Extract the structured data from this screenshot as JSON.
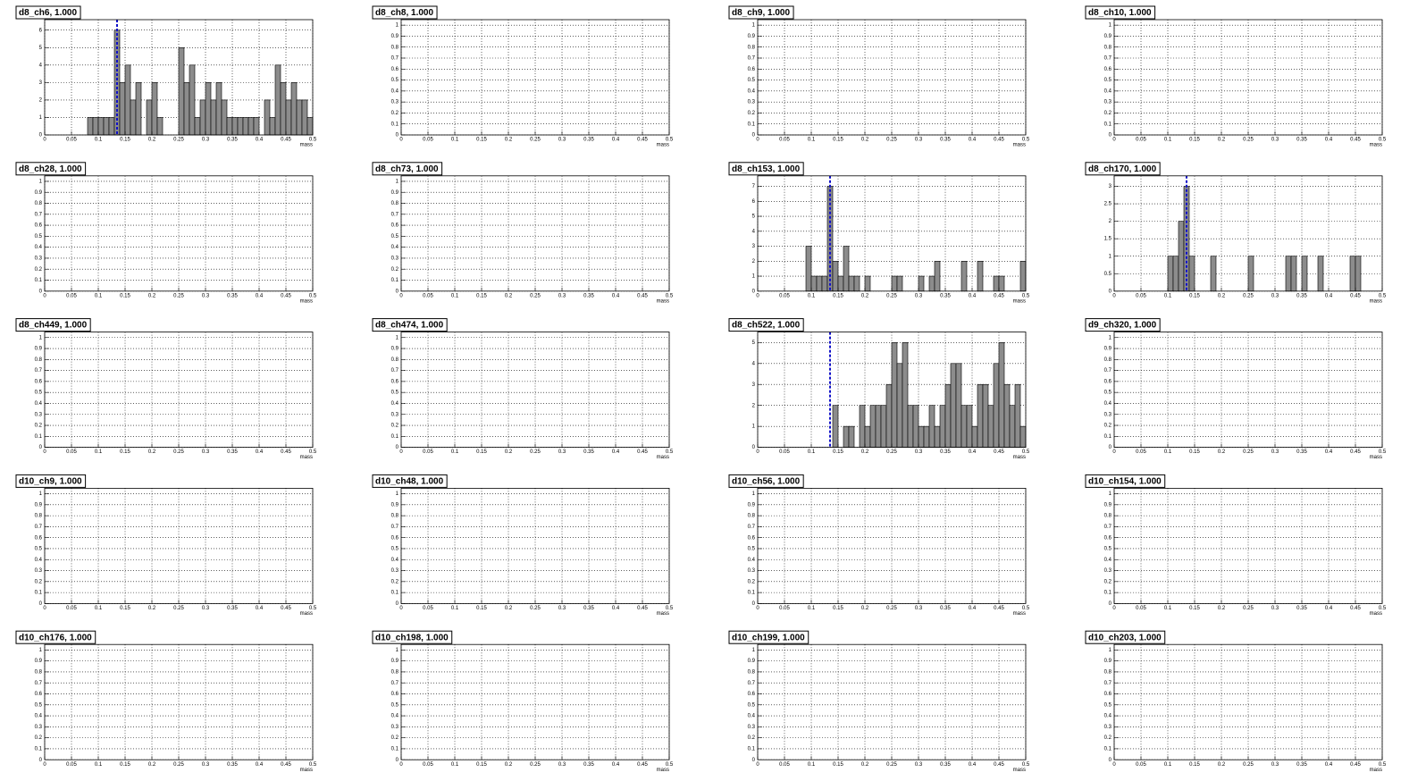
{
  "chart_data": [
    {
      "type": "histogram",
      "title": "d8_ch6, 1.000",
      "xlabel": "mass",
      "xlim": [
        0,
        0.5
      ],
      "xticks": [
        0,
        0.05,
        0.1,
        0.15,
        0.2,
        0.25,
        0.3,
        0.35,
        0.4,
        0.45,
        0.5
      ],
      "ylim": [
        0,
        6.6
      ],
      "yticks": [
        0,
        1,
        2,
        3,
        4,
        5,
        6
      ],
      "grid": true,
      "color": "#8c8c8c",
      "reference_line": 0.135,
      "reference_color": "#1010c8",
      "bins": [
        0,
        0.01,
        0.02,
        0.03,
        0.04,
        0.05,
        0.06,
        0.07,
        0.08,
        0.09,
        0.1,
        0.11,
        0.12,
        0.13,
        0.14,
        0.15,
        0.16,
        0.17,
        0.18,
        0.19,
        0.2,
        0.21,
        0.22,
        0.23,
        0.24,
        0.25,
        0.26,
        0.27,
        0.28,
        0.29,
        0.3,
        0.31,
        0.32,
        0.33,
        0.34,
        0.35,
        0.36,
        0.37,
        0.38,
        0.39,
        0.4,
        0.41,
        0.42,
        0.43,
        0.44,
        0.45,
        0.46,
        0.47,
        0.48,
        0.49,
        0.5
      ],
      "counts": [
        0,
        0,
        0,
        0,
        0,
        0,
        0,
        0,
        1,
        1,
        1,
        1,
        1,
        6,
        3,
        4,
        2,
        3,
        0,
        2,
        3,
        1,
        0,
        0,
        0,
        5,
        3,
        4,
        1,
        2,
        3,
        2,
        3,
        2,
        1,
        1,
        1,
        1,
        1,
        1,
        0,
        2,
        1,
        4,
        3,
        2,
        3,
        2,
        2,
        1
      ]
    },
    {
      "type": "histogram",
      "title": "d8_ch8, 1.000",
      "xlabel": "mass",
      "xlim": [
        0,
        0.5
      ],
      "xticks": [
        0,
        0.05,
        0.1,
        0.15,
        0.2,
        0.25,
        0.3,
        0.35,
        0.4,
        0.45,
        0.5
      ],
      "ylim": [
        0,
        1.05
      ],
      "yticks": [
        0,
        0.1,
        0.2,
        0.3,
        0.4,
        0.5,
        0.6,
        0.7,
        0.8,
        0.9,
        1
      ],
      "grid": true
    },
    {
      "type": "histogram",
      "title": "d8_ch9, 1.000",
      "xlabel": "mass",
      "xlim": [
        0,
        0.5
      ],
      "xticks": [
        0,
        0.05,
        0.1,
        0.15,
        0.2,
        0.25,
        0.3,
        0.35,
        0.4,
        0.45,
        0.5
      ],
      "ylim": [
        0,
        1.05
      ],
      "yticks": [
        0,
        0.1,
        0.2,
        0.3,
        0.4,
        0.5,
        0.6,
        0.7,
        0.8,
        0.9,
        1
      ],
      "grid": true
    },
    {
      "type": "histogram",
      "title": "d8_ch10, 1.000",
      "xlabel": "mass",
      "xlim": [
        0,
        0.5
      ],
      "xticks": [
        0,
        0.05,
        0.1,
        0.15,
        0.2,
        0.25,
        0.3,
        0.35,
        0.4,
        0.45,
        0.5
      ],
      "ylim": [
        0,
        1.05
      ],
      "yticks": [
        0,
        0.1,
        0.2,
        0.3,
        0.4,
        0.5,
        0.6,
        0.7,
        0.8,
        0.9,
        1
      ],
      "grid": true
    },
    {
      "type": "histogram",
      "title": "d8_ch28, 1.000",
      "xlabel": "mass",
      "xlim": [
        0,
        0.5
      ],
      "xticks": [
        0,
        0.05,
        0.1,
        0.15,
        0.2,
        0.25,
        0.3,
        0.35,
        0.4,
        0.45,
        0.5
      ],
      "ylim": [
        0,
        1.05
      ],
      "yticks": [
        0,
        0.1,
        0.2,
        0.3,
        0.4,
        0.5,
        0.6,
        0.7,
        0.8,
        0.9,
        1
      ],
      "grid": true
    },
    {
      "type": "histogram",
      "title": "d8_ch73, 1.000",
      "xlabel": "mass",
      "xlim": [
        0,
        0.5
      ],
      "xticks": [
        0,
        0.05,
        0.1,
        0.15,
        0.2,
        0.25,
        0.3,
        0.35,
        0.4,
        0.45,
        0.5
      ],
      "ylim": [
        0,
        1.05
      ],
      "yticks": [
        0,
        0.1,
        0.2,
        0.3,
        0.4,
        0.5,
        0.6,
        0.7,
        0.8,
        0.9,
        1
      ],
      "grid": true
    },
    {
      "type": "histogram",
      "title": "d8_ch153, 1.000",
      "xlabel": "mass",
      "xlim": [
        0,
        0.5
      ],
      "xticks": [
        0,
        0.05,
        0.1,
        0.15,
        0.2,
        0.25,
        0.3,
        0.35,
        0.4,
        0.45,
        0.5
      ],
      "ylim": [
        0,
        7.7
      ],
      "yticks": [
        0,
        1,
        2,
        3,
        4,
        5,
        6,
        7
      ],
      "grid": true,
      "color": "#8c8c8c",
      "reference_line": 0.135,
      "reference_color": "#1010c8",
      "bins": [
        0,
        0.01,
        0.02,
        0.03,
        0.04,
        0.05,
        0.06,
        0.07,
        0.08,
        0.09,
        0.1,
        0.11,
        0.12,
        0.13,
        0.14,
        0.15,
        0.16,
        0.17,
        0.18,
        0.19,
        0.2,
        0.21,
        0.22,
        0.23,
        0.24,
        0.25,
        0.26,
        0.27,
        0.28,
        0.29,
        0.3,
        0.31,
        0.32,
        0.33,
        0.34,
        0.35,
        0.36,
        0.37,
        0.38,
        0.39,
        0.4,
        0.41,
        0.42,
        0.43,
        0.44,
        0.45,
        0.46,
        0.47,
        0.48,
        0.49,
        0.5
      ],
      "counts": [
        0,
        0,
        0,
        0,
        0,
        0,
        0,
        0,
        0,
        3,
        1,
        1,
        1,
        7,
        2,
        1,
        3,
        1,
        1,
        0,
        1,
        0,
        0,
        0,
        0,
        1,
        1,
        0,
        0,
        0,
        1,
        0,
        1,
        2,
        0,
        0,
        0,
        0,
        2,
        0,
        0,
        2,
        0,
        0,
        1,
        1,
        0,
        0,
        0,
        2
      ]
    },
    {
      "type": "histogram",
      "title": "d8_ch170, 1.000",
      "xlabel": "mass",
      "xlim": [
        0,
        0.5
      ],
      "xticks": [
        0,
        0.05,
        0.1,
        0.15,
        0.2,
        0.25,
        0.3,
        0.35,
        0.4,
        0.45,
        0.5
      ],
      "ylim": [
        0,
        3.3
      ],
      "yticks": [
        0,
        0.5,
        1,
        1.5,
        2,
        2.5,
        3
      ],
      "grid": true,
      "color": "#8c8c8c",
      "reference_line": 0.135,
      "reference_color": "#1010c8",
      "bins": [
        0,
        0.01,
        0.02,
        0.03,
        0.04,
        0.05,
        0.06,
        0.07,
        0.08,
        0.09,
        0.1,
        0.11,
        0.12,
        0.13,
        0.14,
        0.15,
        0.16,
        0.17,
        0.18,
        0.19,
        0.2,
        0.21,
        0.22,
        0.23,
        0.24,
        0.25,
        0.26,
        0.27,
        0.28,
        0.29,
        0.3,
        0.31,
        0.32,
        0.33,
        0.34,
        0.35,
        0.36,
        0.37,
        0.38,
        0.39,
        0.4,
        0.41,
        0.42,
        0.43,
        0.44,
        0.45,
        0.46,
        0.47,
        0.48,
        0.49,
        0.5
      ],
      "counts": [
        0,
        0,
        0,
        0,
        0,
        0,
        0,
        0,
        0,
        0,
        1,
        1,
        2,
        3,
        1,
        0,
        0,
        0,
        1,
        0,
        0,
        0,
        0,
        0,
        0,
        1,
        0,
        0,
        0,
        0,
        0,
        0,
        1,
        1,
        0,
        1,
        0,
        0,
        1,
        0,
        0,
        0,
        0,
        0,
        1,
        1,
        0,
        0,
        0,
        0
      ]
    },
    {
      "type": "histogram",
      "title": "d8_ch449, 1.000",
      "xlabel": "mass",
      "xlim": [
        0,
        0.5
      ],
      "xticks": [
        0,
        0.05,
        0.1,
        0.15,
        0.2,
        0.25,
        0.3,
        0.35,
        0.4,
        0.45,
        0.5
      ],
      "ylim": [
        0,
        1.05
      ],
      "yticks": [
        0,
        0.1,
        0.2,
        0.3,
        0.4,
        0.5,
        0.6,
        0.7,
        0.8,
        0.9,
        1
      ],
      "grid": true
    },
    {
      "type": "histogram",
      "title": "d8_ch474, 1.000",
      "xlabel": "mass",
      "xlim": [
        0,
        0.5
      ],
      "xticks": [
        0,
        0.05,
        0.1,
        0.15,
        0.2,
        0.25,
        0.3,
        0.35,
        0.4,
        0.45,
        0.5
      ],
      "ylim": [
        0,
        1.05
      ],
      "yticks": [
        0,
        0.1,
        0.2,
        0.3,
        0.4,
        0.5,
        0.6,
        0.7,
        0.8,
        0.9,
        1
      ],
      "grid": true
    },
    {
      "type": "histogram",
      "title": "d8_ch522, 1.000",
      "xlabel": "mass",
      "xlim": [
        0,
        0.5
      ],
      "xticks": [
        0,
        0.05,
        0.1,
        0.15,
        0.2,
        0.25,
        0.3,
        0.35,
        0.4,
        0.45,
        0.5
      ],
      "ylim": [
        0,
        5.5
      ],
      "yticks": [
        0,
        1,
        2,
        3,
        4,
        5
      ],
      "grid": true,
      "color": "#8c8c8c",
      "reference_line": 0.135,
      "reference_color": "#1010c8",
      "bins": [
        0,
        0.01,
        0.02,
        0.03,
        0.04,
        0.05,
        0.06,
        0.07,
        0.08,
        0.09,
        0.1,
        0.11,
        0.12,
        0.13,
        0.14,
        0.15,
        0.16,
        0.17,
        0.18,
        0.19,
        0.2,
        0.21,
        0.22,
        0.23,
        0.24,
        0.25,
        0.26,
        0.27,
        0.28,
        0.29,
        0.3,
        0.31,
        0.32,
        0.33,
        0.34,
        0.35,
        0.36,
        0.37,
        0.38,
        0.39,
        0.4,
        0.41,
        0.42,
        0.43,
        0.44,
        0.45,
        0.46,
        0.47,
        0.48,
        0.49,
        0.5
      ],
      "counts": [
        0,
        0,
        0,
        0,
        0,
        0,
        0,
        0,
        0,
        0,
        0,
        0,
        0,
        0,
        2,
        0,
        1,
        1,
        0,
        2,
        1,
        2,
        2,
        2,
        3,
        5,
        4,
        5,
        2,
        2,
        1,
        1,
        2,
        1,
        2,
        3,
        4,
        4,
        2,
        2,
        1,
        3,
        3,
        2,
        4,
        5,
        3,
        2,
        3,
        1
      ]
    },
    {
      "type": "histogram",
      "title": "d9_ch320, 1.000",
      "xlabel": "mass",
      "xlim": [
        0,
        0.5
      ],
      "xticks": [
        0,
        0.05,
        0.1,
        0.15,
        0.2,
        0.25,
        0.3,
        0.35,
        0.4,
        0.45,
        0.5
      ],
      "ylim": [
        0,
        1.05
      ],
      "yticks": [
        0,
        0.1,
        0.2,
        0.3,
        0.4,
        0.5,
        0.6,
        0.7,
        0.8,
        0.9,
        1
      ],
      "grid": true
    },
    {
      "type": "histogram",
      "title": "d10_ch9, 1.000",
      "xlabel": "mass",
      "xlim": [
        0,
        0.5
      ],
      "xticks": [
        0,
        0.05,
        0.1,
        0.15,
        0.2,
        0.25,
        0.3,
        0.35,
        0.4,
        0.45,
        0.5
      ],
      "ylim": [
        0,
        1.05
      ],
      "yticks": [
        0,
        0.1,
        0.2,
        0.3,
        0.4,
        0.5,
        0.6,
        0.7,
        0.8,
        0.9,
        1
      ],
      "grid": true
    },
    {
      "type": "histogram",
      "title": "d10_ch48, 1.000",
      "xlabel": "mass",
      "xlim": [
        0,
        0.5
      ],
      "xticks": [
        0,
        0.05,
        0.1,
        0.15,
        0.2,
        0.25,
        0.3,
        0.35,
        0.4,
        0.45,
        0.5
      ],
      "ylim": [
        0,
        1.05
      ],
      "yticks": [
        0,
        0.1,
        0.2,
        0.3,
        0.4,
        0.5,
        0.6,
        0.7,
        0.8,
        0.9,
        1
      ],
      "grid": true
    },
    {
      "type": "histogram",
      "title": "d10_ch56, 1.000",
      "xlabel": "mass",
      "xlim": [
        0,
        0.5
      ],
      "xticks": [
        0,
        0.05,
        0.1,
        0.15,
        0.2,
        0.25,
        0.3,
        0.35,
        0.4,
        0.45,
        0.5
      ],
      "ylim": [
        0,
        1.05
      ],
      "yticks": [
        0,
        0.1,
        0.2,
        0.3,
        0.4,
        0.5,
        0.6,
        0.7,
        0.8,
        0.9,
        1
      ],
      "grid": true
    },
    {
      "type": "histogram",
      "title": "d10_ch154, 1.000",
      "xlabel": "mass",
      "xlim": [
        0,
        0.5
      ],
      "xticks": [
        0,
        0.05,
        0.1,
        0.15,
        0.2,
        0.25,
        0.3,
        0.35,
        0.4,
        0.45,
        0.5
      ],
      "ylim": [
        0,
        1.05
      ],
      "yticks": [
        0,
        0.1,
        0.2,
        0.3,
        0.4,
        0.5,
        0.6,
        0.7,
        0.8,
        0.9,
        1
      ],
      "grid": true
    },
    {
      "type": "histogram",
      "title": "d10_ch176, 1.000",
      "xlabel": "mass",
      "xlim": [
        0,
        0.5
      ],
      "xticks": [
        0,
        0.05,
        0.1,
        0.15,
        0.2,
        0.25,
        0.3,
        0.35,
        0.4,
        0.45,
        0.5
      ],
      "ylim": [
        0,
        1.05
      ],
      "yticks": [
        0,
        0.1,
        0.2,
        0.3,
        0.4,
        0.5,
        0.6,
        0.7,
        0.8,
        0.9,
        1
      ],
      "grid": true
    },
    {
      "type": "histogram",
      "title": "d10_ch198, 1.000",
      "xlabel": "mass",
      "xlim": [
        0,
        0.5
      ],
      "xticks": [
        0,
        0.05,
        0.1,
        0.15,
        0.2,
        0.25,
        0.3,
        0.35,
        0.4,
        0.45,
        0.5
      ],
      "ylim": [
        0,
        1.05
      ],
      "yticks": [
        0,
        0.1,
        0.2,
        0.3,
        0.4,
        0.5,
        0.6,
        0.7,
        0.8,
        0.9,
        1
      ],
      "grid": true
    },
    {
      "type": "histogram",
      "title": "d10_ch199, 1.000",
      "xlabel": "mass",
      "xlim": [
        0,
        0.5
      ],
      "xticks": [
        0,
        0.05,
        0.1,
        0.15,
        0.2,
        0.25,
        0.3,
        0.35,
        0.4,
        0.45,
        0.5
      ],
      "ylim": [
        0,
        1.05
      ],
      "yticks": [
        0,
        0.1,
        0.2,
        0.3,
        0.4,
        0.5,
        0.6,
        0.7,
        0.8,
        0.9,
        1
      ],
      "grid": true
    },
    {
      "type": "histogram",
      "title": "d10_ch203, 1.000",
      "xlabel": "mass",
      "xlim": [
        0,
        0.5
      ],
      "xticks": [
        0,
        0.05,
        0.1,
        0.15,
        0.2,
        0.25,
        0.3,
        0.35,
        0.4,
        0.45,
        0.5
      ],
      "ylim": [
        0,
        1.05
      ],
      "yticks": [
        0,
        0.1,
        0.2,
        0.3,
        0.4,
        0.5,
        0.6,
        0.7,
        0.8,
        0.9,
        1
      ],
      "grid": true
    }
  ]
}
